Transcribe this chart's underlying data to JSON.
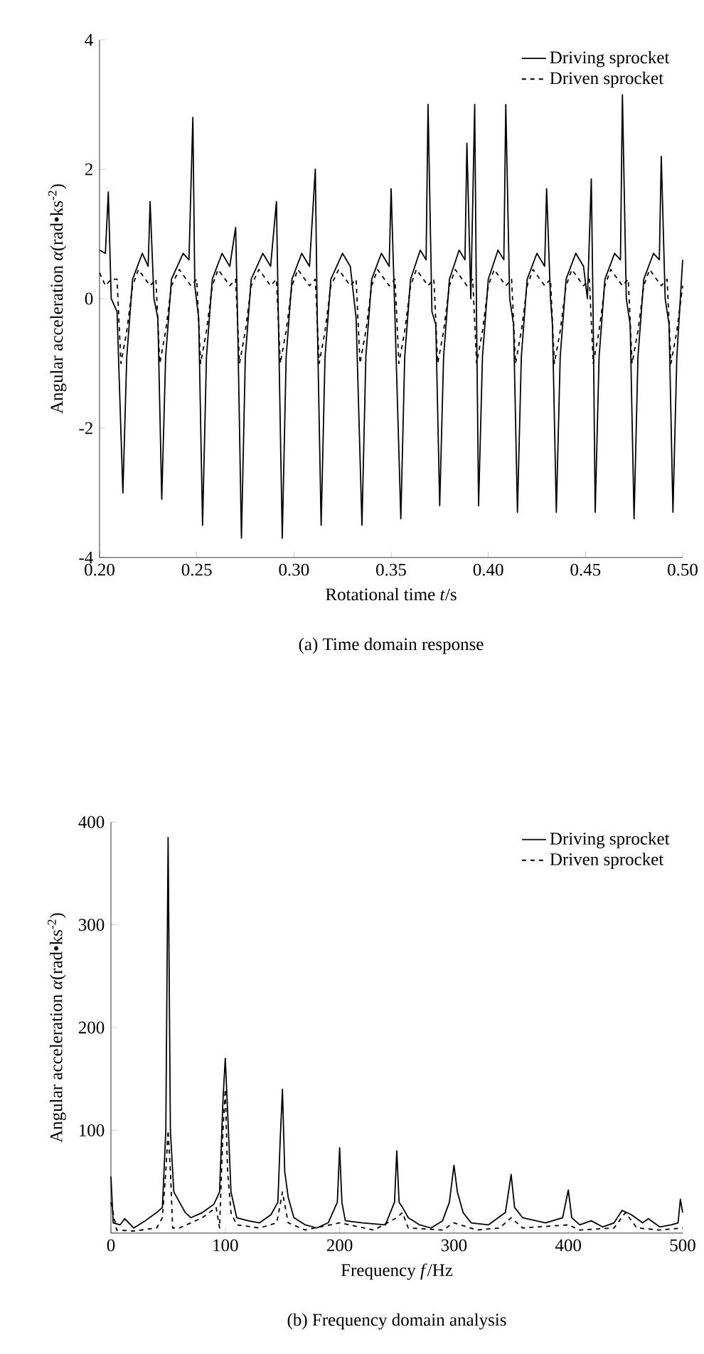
{
  "chart_data": [
    {
      "type": "line",
      "title": "(a) Time domain response",
      "xlabel": "Rotational time  *t*/s",
      "ylabel": "Angular acceleration *α*(rad•ks$^{-2}$)",
      "xlim": [
        0.2,
        0.5
      ],
      "ylim": [
        -4,
        4
      ],
      "xticks": [
        {
          "value": 0.2,
          "label": "0.20"
        },
        {
          "value": 0.25,
          "label": "0.25"
        },
        {
          "value": 0.3,
          "label": "0.30"
        },
        {
          "value": 0.35,
          "label": "0.35"
        },
        {
          "value": 0.4,
          "label": "0.40"
        },
        {
          "value": 0.45,
          "label": "0.45"
        },
        {
          "value": 0.5,
          "label": "0.50"
        }
      ],
      "yticks": [
        -4,
        -2,
        0,
        2,
        4
      ],
      "legend": "top right",
      "series": [
        {
          "name": "Driving sprocket",
          "color": "#000000",
          "line_style": "solid",
          "x": [
            0.2,
            0.203,
            0.2045,
            0.206,
            0.209,
            0.212,
            0.214,
            0.217,
            0.222,
            0.225,
            0.226,
            0.228,
            0.23,
            0.232,
            0.234,
            0.237,
            0.243,
            0.246,
            0.248,
            0.249,
            0.251,
            0.253,
            0.255,
            0.258,
            0.263,
            0.267,
            0.27,
            0.271,
            0.273,
            0.275,
            0.278,
            0.284,
            0.288,
            0.291,
            0.292,
            0.294,
            0.296,
            0.299,
            0.304,
            0.308,
            0.311,
            0.312,
            0.314,
            0.316,
            0.319,
            0.325,
            0.329,
            0.332,
            0.335,
            0.337,
            0.34,
            0.345,
            0.349,
            0.35,
            0.352,
            0.355,
            0.357,
            0.36,
            0.365,
            0.368,
            0.369,
            0.371,
            0.373,
            0.375,
            0.377,
            0.38,
            0.385,
            0.388,
            0.389,
            0.391,
            0.393,
            0.394,
            0.395,
            0.397,
            0.4,
            0.405,
            0.408,
            0.409,
            0.411,
            0.413,
            0.415,
            0.417,
            0.42,
            0.425,
            0.429,
            0.43,
            0.432,
            0.433,
            0.435,
            0.437,
            0.44,
            0.445,
            0.449,
            0.451,
            0.453,
            0.454,
            0.455,
            0.457,
            0.46,
            0.465,
            0.468,
            0.469,
            0.471,
            0.473,
            0.475,
            0.477,
            0.48,
            0.485,
            0.488,
            0.489,
            0.491,
            0.493,
            0.495,
            0.497,
            0.5
          ],
          "values": [
            0.75,
            0.7,
            1.65,
            0.0,
            -0.2,
            -3.0,
            -0.9,
            0.3,
            0.7,
            0.5,
            1.5,
            0.0,
            -0.3,
            -3.1,
            -0.9,
            0.3,
            0.7,
            0.6,
            2.8,
            0.2,
            -0.3,
            -3.5,
            -0.9,
            0.3,
            0.7,
            0.5,
            1.1,
            -0.3,
            -3.7,
            -0.9,
            0.3,
            0.7,
            0.5,
            1.5,
            -0.3,
            -3.7,
            -0.9,
            0.3,
            0.7,
            0.5,
            2.0,
            -0.3,
            -3.5,
            -0.9,
            0.3,
            0.7,
            0.5,
            -0.3,
            -3.5,
            -0.9,
            0.3,
            0.7,
            0.5,
            1.7,
            -0.3,
            -3.4,
            -0.9,
            0.3,
            0.75,
            0.6,
            3.0,
            -0.2,
            -0.4,
            -3.2,
            -0.9,
            0.3,
            0.75,
            0.6,
            2.4,
            0.0,
            3.0,
            -0.4,
            -3.2,
            -0.9,
            0.3,
            0.75,
            0.6,
            3.0,
            0.0,
            -0.4,
            -3.3,
            -0.9,
            0.3,
            0.7,
            0.5,
            1.7,
            0.0,
            -0.4,
            -3.3,
            -0.9,
            0.3,
            0.7,
            0.5,
            0.0,
            1.85,
            -0.4,
            -3.3,
            -0.9,
            0.3,
            0.7,
            0.6,
            3.15,
            0.0,
            -0.4,
            -3.4,
            -0.9,
            0.3,
            0.7,
            0.6,
            2.2,
            0.0,
            -0.4,
            -3.3,
            -0.9,
            0.6
          ]
        },
        {
          "name": "Driven sprocket",
          "color": "#000000",
          "line_style": "dashed",
          "x": [
            0.2,
            0.203,
            0.206,
            0.209,
            0.211,
            0.214,
            0.217,
            0.22,
            0.226,
            0.229,
            0.231,
            0.234,
            0.237,
            0.241,
            0.247,
            0.25,
            0.252,
            0.255,
            0.258,
            0.261,
            0.267,
            0.27,
            0.272,
            0.275,
            0.278,
            0.282,
            0.288,
            0.291,
            0.293,
            0.296,
            0.299,
            0.302,
            0.308,
            0.311,
            0.313,
            0.316,
            0.319,
            0.323,
            0.329,
            0.332,
            0.334,
            0.337,
            0.34,
            0.343,
            0.349,
            0.352,
            0.354,
            0.357,
            0.36,
            0.363,
            0.369,
            0.372,
            0.374,
            0.377,
            0.38,
            0.383,
            0.389,
            0.392,
            0.394,
            0.397,
            0.4,
            0.403,
            0.409,
            0.412,
            0.414,
            0.417,
            0.42,
            0.423,
            0.429,
            0.432,
            0.434,
            0.437,
            0.44,
            0.443,
            0.449,
            0.452,
            0.454,
            0.457,
            0.46,
            0.463,
            0.469,
            0.472,
            0.474,
            0.477,
            0.48,
            0.483,
            0.489,
            0.492,
            0.494,
            0.497,
            0.5
          ],
          "values": [
            0.4,
            0.2,
            0.3,
            0.3,
            -1.0,
            -0.5,
            0.2,
            0.45,
            0.2,
            0.3,
            -1.0,
            -0.5,
            0.2,
            0.45,
            0.2,
            0.3,
            -1.0,
            -0.5,
            0.2,
            0.45,
            0.2,
            0.3,
            -1.0,
            -0.5,
            0.2,
            0.45,
            0.2,
            0.3,
            -1.0,
            -0.5,
            0.2,
            0.45,
            0.2,
            0.3,
            -1.0,
            -0.5,
            0.2,
            0.45,
            0.2,
            0.3,
            -1.0,
            -0.5,
            0.2,
            0.45,
            0.2,
            0.3,
            -1.0,
            -0.5,
            0.2,
            0.45,
            0.2,
            0.3,
            -1.0,
            -0.5,
            0.2,
            0.45,
            0.2,
            0.3,
            -1.0,
            -0.5,
            0.2,
            0.45,
            0.2,
            0.3,
            -1.0,
            -0.5,
            0.2,
            0.45,
            0.2,
            0.3,
            -1.0,
            -0.5,
            0.2,
            0.45,
            0.2,
            0.3,
            -1.0,
            -0.5,
            0.2,
            0.45,
            0.2,
            0.3,
            -1.0,
            -0.5,
            0.2,
            0.45,
            0.2,
            0.3,
            -1.0,
            -0.5,
            0.2
          ]
        }
      ]
    },
    {
      "type": "line",
      "title": "(b) Frequency domain analysis",
      "xlabel": "Frequency  *f*/Hz",
      "ylabel": "Angular acceleration *α*(rad•ks$^{-2}$)",
      "xlim": [
        0,
        500
      ],
      "ylim": [
        0,
        400
      ],
      "xticks": [
        0,
        100,
        200,
        300,
        400,
        500
      ],
      "yticks": [
        {
          "value": 0,
          "label": null
        },
        100,
        200,
        300,
        400
      ],
      "legend": "top right",
      "series": [
        {
          "name": "Driving sprocket",
          "color": "#000000",
          "line_style": "solid",
          "x": [
            0,
            2,
            8,
            12,
            20,
            30,
            40,
            45,
            48,
            50,
            52,
            55,
            60,
            65,
            70,
            80,
            90,
            95,
            98,
            100,
            102,
            105,
            110,
            120,
            130,
            140,
            146,
            148,
            150,
            152,
            155,
            160,
            170,
            180,
            190,
            198,
            200,
            202,
            205,
            220,
            240,
            248,
            250,
            252,
            255,
            260,
            270,
            280,
            290,
            296,
            300,
            303,
            308,
            315,
            330,
            345,
            350,
            353,
            360,
            380,
            395,
            400,
            403,
            410,
            420,
            430,
            440,
            447,
            455,
            465,
            470,
            480,
            490,
            496,
            498,
            500
          ],
          "values": [
            55,
            10,
            8,
            14,
            5,
            12,
            20,
            25,
            100,
            385,
            100,
            40,
            30,
            20,
            15,
            20,
            28,
            40,
            130,
            170,
            120,
            40,
            15,
            12,
            10,
            18,
            30,
            90,
            140,
            60,
            35,
            15,
            8,
            5,
            10,
            30,
            83,
            30,
            12,
            10,
            8,
            30,
            80,
            30,
            25,
            15,
            8,
            5,
            12,
            30,
            66,
            40,
            20,
            10,
            8,
            20,
            57,
            25,
            15,
            10,
            15,
            42,
            15,
            8,
            12,
            6,
            10,
            22,
            18,
            10,
            14,
            6,
            8,
            10,
            33,
            20
          ]
        },
        {
          "name": "Driven sprocket",
          "color": "#000000",
          "line_style": "dashed",
          "x": [
            0,
            5,
            20,
            40,
            45,
            48,
            50,
            52,
            54,
            60,
            80,
            92,
            95,
            98,
            100,
            102,
            105,
            110,
            130,
            145,
            150,
            155,
            170,
            200,
            230,
            250,
            255,
            260,
            290,
            300,
            320,
            340,
            350,
            360,
            400,
            410,
            440,
            450,
            460,
            480,
            500
          ],
          "values": [
            30,
            3,
            2,
            5,
            15,
            60,
            100,
            60,
            5,
            5,
            15,
            25,
            5,
            100,
            140,
            60,
            20,
            8,
            5,
            10,
            40,
            10,
            3,
            10,
            3,
            15,
            20,
            5,
            3,
            10,
            3,
            5,
            15,
            5,
            8,
            3,
            5,
            20,
            5,
            3,
            5
          ]
        }
      ]
    }
  ]
}
